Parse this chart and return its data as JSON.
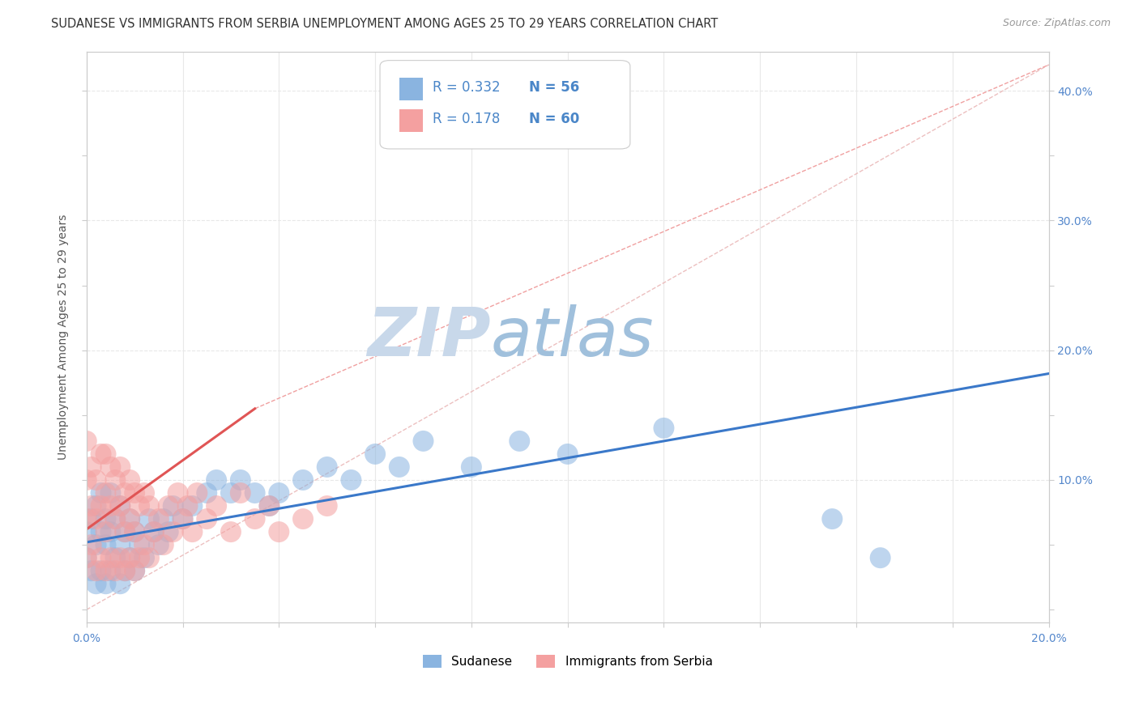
{
  "title": "SUDANESE VS IMMIGRANTS FROM SERBIA UNEMPLOYMENT AMONG AGES 25 TO 29 YEARS CORRELATION CHART",
  "source": "Source: ZipAtlas.com",
  "ylabel": "Unemployment Among Ages 25 to 29 years",
  "xlim": [
    0.0,
    0.2
  ],
  "ylim": [
    -0.01,
    0.43
  ],
  "xticks": [
    0.0,
    0.02,
    0.04,
    0.06,
    0.08,
    0.1,
    0.12,
    0.14,
    0.16,
    0.18,
    0.2
  ],
  "yticks": [
    0.0,
    0.05,
    0.1,
    0.15,
    0.2,
    0.25,
    0.3,
    0.35,
    0.4
  ],
  "blue_R": 0.332,
  "blue_N": 56,
  "pink_R": 0.178,
  "pink_N": 60,
  "blue_color": "#8ab4e0",
  "pink_color": "#f4a0a0",
  "blue_line_color": "#3a78c9",
  "pink_line_color": "#e05555",
  "pink_dash_color": "#f0a0a0",
  "diagonal_color": "#cccccc",
  "watermark_zip": "ZIP",
  "watermark_atlas": "atlas",
  "watermark_color_zip": "#c8d8ea",
  "watermark_color_atlas": "#a0c0dc",
  "legend_label_blue": "Sudanese",
  "legend_label_pink": "Immigrants from Serbia",
  "blue_scatter_x": [
    0.0,
    0.0,
    0.001,
    0.001,
    0.002,
    0.002,
    0.002,
    0.003,
    0.003,
    0.003,
    0.004,
    0.004,
    0.004,
    0.005,
    0.005,
    0.005,
    0.006,
    0.006,
    0.007,
    0.007,
    0.007,
    0.008,
    0.008,
    0.009,
    0.009,
    0.01,
    0.01,
    0.011,
    0.012,
    0.013,
    0.014,
    0.015,
    0.016,
    0.017,
    0.018,
    0.02,
    0.022,
    0.025,
    0.027,
    0.03,
    0.032,
    0.035,
    0.038,
    0.04,
    0.045,
    0.05,
    0.055,
    0.06,
    0.065,
    0.07,
    0.08,
    0.09,
    0.1,
    0.12,
    0.155,
    0.165
  ],
  "blue_scatter_y": [
    0.04,
    0.06,
    0.03,
    0.07,
    0.02,
    0.05,
    0.08,
    0.03,
    0.06,
    0.09,
    0.02,
    0.05,
    0.07,
    0.03,
    0.06,
    0.09,
    0.04,
    0.07,
    0.02,
    0.05,
    0.08,
    0.03,
    0.06,
    0.04,
    0.07,
    0.03,
    0.06,
    0.05,
    0.04,
    0.07,
    0.06,
    0.05,
    0.07,
    0.06,
    0.08,
    0.07,
    0.08,
    0.09,
    0.1,
    0.09,
    0.1,
    0.09,
    0.08,
    0.09,
    0.1,
    0.11,
    0.1,
    0.12,
    0.11,
    0.13,
    0.11,
    0.13,
    0.12,
    0.14,
    0.07,
    0.04
  ],
  "pink_scatter_x": [
    0.0,
    0.0,
    0.0,
    0.0,
    0.001,
    0.001,
    0.001,
    0.002,
    0.002,
    0.002,
    0.003,
    0.003,
    0.003,
    0.004,
    0.004,
    0.004,
    0.004,
    0.005,
    0.005,
    0.005,
    0.006,
    0.006,
    0.006,
    0.007,
    0.007,
    0.007,
    0.008,
    0.008,
    0.008,
    0.009,
    0.009,
    0.009,
    0.01,
    0.01,
    0.01,
    0.011,
    0.011,
    0.012,
    0.012,
    0.013,
    0.013,
    0.014,
    0.015,
    0.016,
    0.017,
    0.018,
    0.019,
    0.02,
    0.021,
    0.022,
    0.023,
    0.025,
    0.027,
    0.03,
    0.032,
    0.035,
    0.038,
    0.04,
    0.045,
    0.05
  ],
  "pink_scatter_y": [
    0.04,
    0.07,
    0.1,
    0.13,
    0.05,
    0.08,
    0.11,
    0.03,
    0.07,
    0.1,
    0.04,
    0.08,
    0.12,
    0.03,
    0.06,
    0.09,
    0.12,
    0.04,
    0.08,
    0.11,
    0.03,
    0.07,
    0.1,
    0.04,
    0.08,
    0.11,
    0.03,
    0.06,
    0.09,
    0.04,
    0.07,
    0.1,
    0.03,
    0.06,
    0.09,
    0.04,
    0.08,
    0.05,
    0.09,
    0.04,
    0.08,
    0.06,
    0.07,
    0.05,
    0.08,
    0.06,
    0.09,
    0.07,
    0.08,
    0.06,
    0.09,
    0.07,
    0.08,
    0.06,
    0.09,
    0.07,
    0.08,
    0.06,
    0.07,
    0.08
  ],
  "bg_color": "#ffffff",
  "grid_color": "#e8e8e8",
  "title_fontsize": 10.5,
  "axis_label_fontsize": 10,
  "tick_fontsize": 10
}
